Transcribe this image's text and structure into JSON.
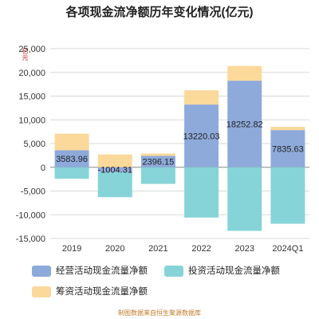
{
  "chart_data": {
    "type": "bar",
    "stacked": true,
    "title": "各项现金流净额历年变化情况(亿元)",
    "ylabel": "亿元",
    "categories": [
      "2019",
      "2020",
      "2021",
      "2022",
      "2023",
      "2024Q1"
    ],
    "ylim": [
      -15000,
      25000
    ],
    "yticks": [
      -15000,
      -10000,
      -5000,
      0,
      5000,
      10000,
      15000,
      20000,
      25000
    ],
    "ytick_labels": [
      "-15,000",
      "-10,000",
      "-5,000",
      "0",
      "5,000",
      "10,000",
      "15,000",
      "20,000",
      "25,000"
    ],
    "grid": true,
    "legend_position": "bottom",
    "series": [
      {
        "name": "经营活动现金流量净额",
        "color": "#8eaadb",
        "values": [
          3583.96,
          -1004.31,
          2396.15,
          13220.03,
          18252.82,
          7835.63
        ],
        "labels": [
          "3583.96",
          "-1004.31",
          "2396.15",
          "13220.03",
          "18252.82",
          "7835.63"
        ]
      },
      {
        "name": "投资活动现金流量净额",
        "color": "#86d4d8",
        "values": [
          -2400,
          -5300,
          -3500,
          -10600,
          -13400,
          -11900
        ]
      },
      {
        "name": "筹资活动现金流量净额",
        "color": "#fbd99b",
        "values": [
          3500,
          2700,
          500,
          3000,
          3100,
          700
        ]
      }
    ]
  },
  "source_note": "制图数据来自恒生聚源数据库"
}
